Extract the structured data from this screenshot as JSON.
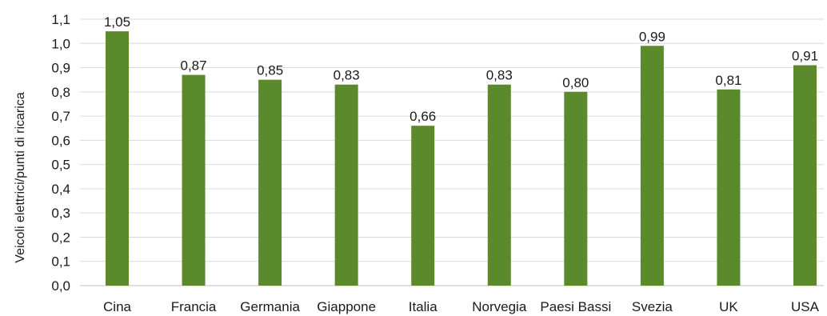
{
  "chart_data": {
    "type": "bar",
    "categories": [
      "Cina",
      "Francia",
      "Germania",
      "Giappone",
      "Italia",
      "Norvegia",
      "Paesi Bassi",
      "Svezia",
      "UK",
      "USA"
    ],
    "values": [
      1.05,
      0.87,
      0.85,
      0.83,
      0.66,
      0.83,
      0.8,
      0.99,
      0.81,
      0.91
    ],
    "value_labels": [
      "1,05",
      "0,87",
      "0,85",
      "0,83",
      "0,66",
      "0,83",
      "0,80",
      "0,99",
      "0,81",
      "0,91"
    ],
    "ylabel": "Veicoli elettrici/punti di ricarica",
    "ylim": [
      0,
      1.1
    ],
    "yticks": [
      "0,0",
      "0,1",
      "0,2",
      "0,3",
      "0,4",
      "0,5",
      "0,6",
      "0,7",
      "0,8",
      "0,9",
      "1,0",
      "1,1"
    ],
    "grid": true,
    "legend": "none",
    "colors": {
      "bar": "#5a8a2b",
      "grid": "#d9d9d9"
    }
  }
}
